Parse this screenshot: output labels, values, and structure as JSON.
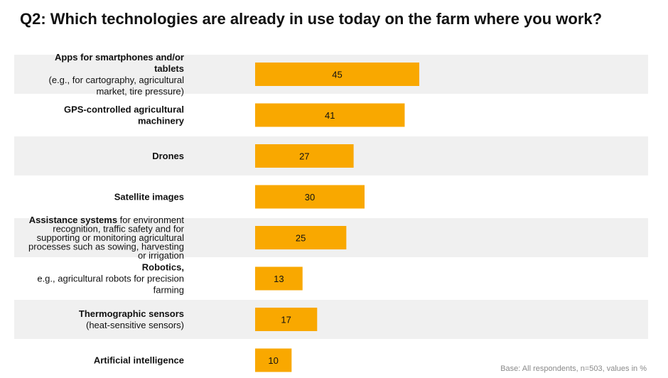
{
  "title": "Q2: Which technologies are already in use today on the farm where you work?",
  "footnote": "Base: All respondents, n=503, values in %",
  "colors": {
    "bar": "#f9a800",
    "band": "#f0f0f0",
    "text": "#111111",
    "footnote": "#8a8a8a"
  },
  "chart_data": {
    "type": "bar",
    "orientation": "horizontal",
    "categories": [
      {
        "bold": "Apps for smartphones and/or tablets",
        "rest": "(e.g., for cartography, agricultural market, tire pressure)"
      },
      {
        "bold": "GPS-controlled agricultural machinery",
        "rest": ""
      },
      {
        "bold": "Drones",
        "rest": ""
      },
      {
        "bold": "Satellite images",
        "rest": ""
      },
      {
        "bold": "Assistance systems",
        "rest": "for environment recognition, traffic safety and for supporting or monitoring agricultural processes such as sowing, harvesting or irrigation"
      },
      {
        "bold": "Robotics,",
        "rest": "e.g., agricultural robots for precision farming"
      },
      {
        "bold": "Thermographic sensors",
        "rest": "(heat-sensitive sensors)"
      },
      {
        "bold": "Artificial intelligence",
        "rest": ""
      }
    ],
    "values": [
      45,
      41,
      27,
      30,
      25,
      13,
      17,
      10
    ],
    "unit": "%",
    "xlim": [
      0,
      100
    ],
    "grid": false,
    "legend": "none",
    "data_labels": "inside-bar"
  }
}
